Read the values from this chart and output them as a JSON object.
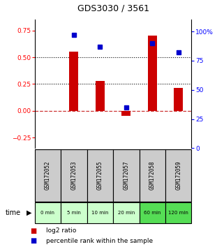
{
  "title": "GDS3030 / 3561",
  "samples": [
    "GSM172052",
    "GSM172053",
    "GSM172055",
    "GSM172057",
    "GSM172058",
    "GSM172059"
  ],
  "time_labels": [
    "0 min",
    "5 min",
    "10 min",
    "20 min",
    "60 min",
    "120 min"
  ],
  "log2_ratio": [
    0.0,
    0.55,
    0.28,
    -0.05,
    0.7,
    0.21
  ],
  "percentile_rank": [
    null,
    97,
    87,
    35,
    90,
    82
  ],
  "ylim_left": [
    -0.35,
    0.85
  ],
  "ylim_right": [
    0,
    110
  ],
  "yticks_left": [
    -0.25,
    0,
    0.25,
    0.5,
    0.75
  ],
  "yticks_right": [
    0,
    25,
    50,
    75,
    100
  ],
  "ytick_right_labels": [
    "0",
    "25",
    "50",
    "75",
    "100%"
  ],
  "hlines": [
    0.5,
    0.25
  ],
  "bar_color": "#cc0000",
  "dot_color": "#0000cc",
  "zero_line_color": "#cc3333",
  "bg_color": "#ffffff",
  "plot_bg": "#ffffff",
  "gsm_bg": "#cccccc",
  "time_bg_light": "#ccffcc",
  "time_bg_dark": "#55dd55",
  "bar_width": 0.35
}
